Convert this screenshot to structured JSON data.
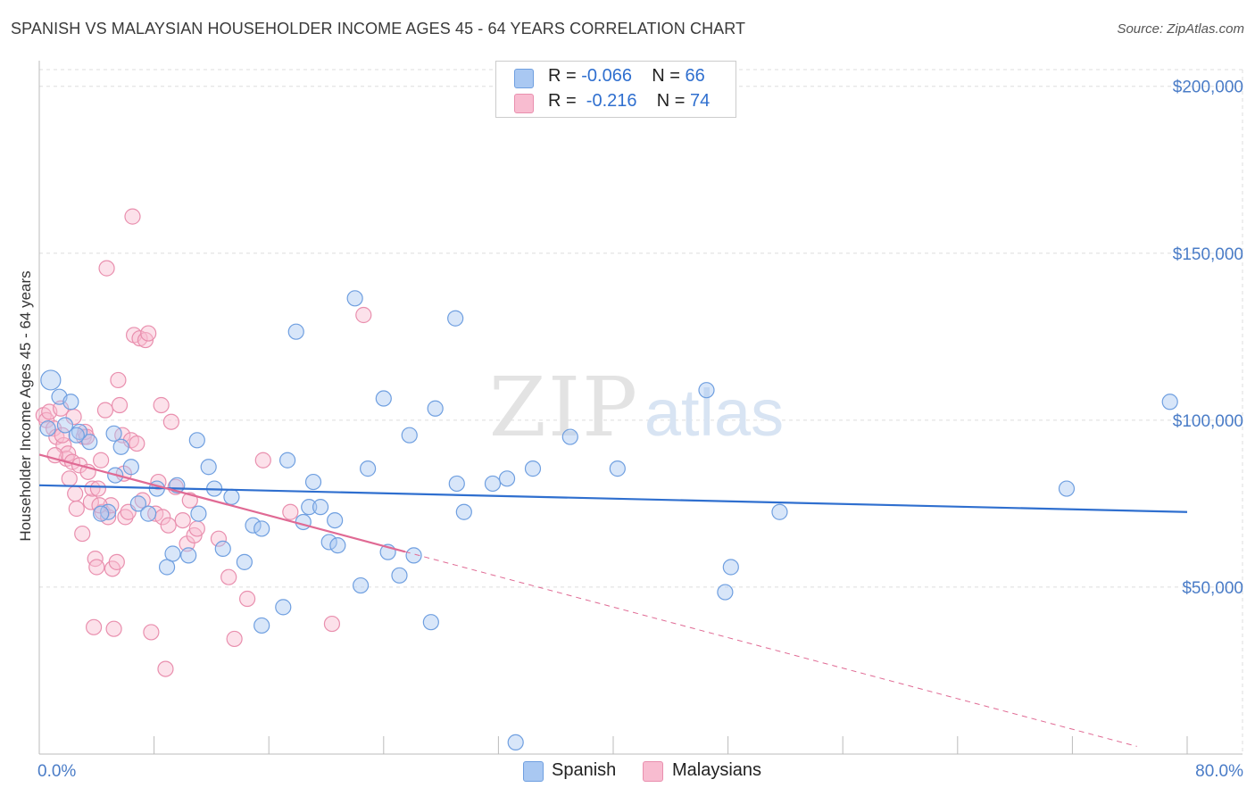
{
  "title": "SPANISH VS MALAYSIAN HOUSEHOLDER INCOME AGES 45 - 64 YEARS CORRELATION CHART",
  "source": "Source: ZipAtlas.com",
  "watermark": {
    "zip": "ZIP",
    "atlas": "atlas"
  },
  "legend": {
    "rows": [
      {
        "r_label": "R = ",
        "r_value": "-0.066",
        "n_label": "N = ",
        "n_value": "66",
        "color": "#a9c8f2",
        "border": "#6f9fe0"
      },
      {
        "r_label": "R = ",
        "r_value": " -0.216",
        "n_label": "N = ",
        "n_value": "74",
        "color": "#f8bcd0",
        "border": "#e98fae"
      }
    ]
  },
  "bottom_legend": [
    {
      "label": "Spanish",
      "color": "#a9c8f2",
      "border": "#6f9fe0"
    },
    {
      "label": "Malaysians",
      "color": "#f8bcd0",
      "border": "#e98fae"
    }
  ],
  "chart_data": {
    "type": "scatter",
    "ylabel": "Householder Income Ages 45 - 64 years",
    "x_tick_labels": [
      "0.0%",
      "80.0%"
    ],
    "y_tick_labels": [
      "$50,000",
      "$100,000",
      "$150,000",
      "$200,000"
    ],
    "y_ticks": [
      50000,
      100000,
      150000,
      200000
    ],
    "xlim": [
      0,
      80
    ],
    "ylim": [
      0,
      205000
    ],
    "grid": true,
    "series": [
      {
        "name": "Spanish",
        "color": "#a9c8f2",
        "stroke": "#6f9fe0",
        "trend_color": "#2f6fcf",
        "trend": {
          "x": [
            0,
            80
          ],
          "y": [
            80500,
            72500
          ]
        },
        "points": [
          [
            0.8,
            112000
          ],
          [
            1.4,
            107000
          ],
          [
            2.2,
            105500
          ],
          [
            1.8,
            98500
          ],
          [
            3.5,
            93500
          ],
          [
            2.8,
            96500
          ],
          [
            5.7,
            92000
          ],
          [
            5.2,
            96000
          ],
          [
            6.4,
            86000
          ],
          [
            5.3,
            83500
          ],
          [
            4.8,
            72500
          ],
          [
            4.3,
            72000
          ],
          [
            6.9,
            75000
          ],
          [
            7.6,
            72000
          ],
          [
            8.2,
            79500
          ],
          [
            9.6,
            80500
          ],
          [
            8.9,
            56000
          ],
          [
            9.3,
            60000
          ],
          [
            10.4,
            59500
          ],
          [
            11.0,
            94000
          ],
          [
            11.1,
            72000
          ],
          [
            11.8,
            86000
          ],
          [
            12.2,
            79500
          ],
          [
            12.8,
            61500
          ],
          [
            13.4,
            77000
          ],
          [
            14.3,
            57500
          ],
          [
            14.9,
            68500
          ],
          [
            15.5,
            67500
          ],
          [
            15.5,
            38500
          ],
          [
            17.0,
            44000
          ],
          [
            17.3,
            88000
          ],
          [
            17.9,
            126500
          ],
          [
            18.4,
            69500
          ],
          [
            18.8,
            74000
          ],
          [
            19.1,
            81500
          ],
          [
            19.6,
            74000
          ],
          [
            20.2,
            63500
          ],
          [
            20.6,
            70000
          ],
          [
            20.8,
            62500
          ],
          [
            22.0,
            136500
          ],
          [
            22.4,
            50500
          ],
          [
            22.9,
            85500
          ],
          [
            24.0,
            106500
          ],
          [
            24.3,
            60500
          ],
          [
            25.1,
            53500
          ],
          [
            25.8,
            95500
          ],
          [
            26.1,
            59500
          ],
          [
            27.3,
            39500
          ],
          [
            27.6,
            103500
          ],
          [
            29.0,
            130500
          ],
          [
            29.1,
            81000
          ],
          [
            29.6,
            72500
          ],
          [
            31.6,
            81000
          ],
          [
            32.6,
            82500
          ],
          [
            33.2,
            3500
          ],
          [
            34.4,
            85500
          ],
          [
            37.0,
            95000
          ],
          [
            40.3,
            85500
          ],
          [
            46.5,
            109000
          ],
          [
            47.8,
            48500
          ],
          [
            48.2,
            56000
          ],
          [
            51.6,
            72500
          ],
          [
            71.6,
            79500
          ],
          [
            78.8,
            105500
          ],
          [
            0.6,
            97500
          ],
          [
            2.6,
            95500
          ]
        ]
      },
      {
        "name": "Malaysians",
        "color": "#f8bcd0",
        "stroke": "#e98fae",
        "trend_color": "#e06a94",
        "trend": {
          "x": [
            0,
            25.5
          ],
          "y": [
            89700,
            60600
          ]
        },
        "trend_dashed": {
          "x": [
            25.5,
            76.5
          ],
          "y": [
            60600,
            2300
          ]
        },
        "points": [
          [
            0.3,
            101500
          ],
          [
            0.5,
            100000
          ],
          [
            0.7,
            102500
          ],
          [
            1.0,
            97500
          ],
          [
            1.2,
            95000
          ],
          [
            1.5,
            103500
          ],
          [
            1.7,
            92500
          ],
          [
            1.9,
            88500
          ],
          [
            2.0,
            90000
          ],
          [
            2.1,
            82500
          ],
          [
            2.3,
            87500
          ],
          [
            2.5,
            78000
          ],
          [
            2.6,
            73500
          ],
          [
            2.8,
            86500
          ],
          [
            3.0,
            66000
          ],
          [
            3.1,
            95000
          ],
          [
            3.2,
            96500
          ],
          [
            3.4,
            84500
          ],
          [
            3.6,
            75500
          ],
          [
            3.7,
            79500
          ],
          [
            3.9,
            58500
          ],
          [
            4.0,
            56000
          ],
          [
            4.1,
            79500
          ],
          [
            4.3,
            88000
          ],
          [
            4.4,
            72500
          ],
          [
            4.6,
            103000
          ],
          [
            4.7,
            145500
          ],
          [
            4.8,
            71000
          ],
          [
            5.0,
            74500
          ],
          [
            5.1,
            55500
          ],
          [
            5.2,
            37500
          ],
          [
            5.4,
            57500
          ],
          [
            5.5,
            112000
          ],
          [
            5.6,
            104500
          ],
          [
            5.8,
            95500
          ],
          [
            6.0,
            71000
          ],
          [
            6.2,
            72500
          ],
          [
            6.4,
            94000
          ],
          [
            6.5,
            161000
          ],
          [
            6.6,
            125500
          ],
          [
            6.8,
            93000
          ],
          [
            7.0,
            124500
          ],
          [
            7.2,
            76000
          ],
          [
            7.4,
            124000
          ],
          [
            7.6,
            126000
          ],
          [
            7.8,
            36500
          ],
          [
            8.1,
            72000
          ],
          [
            8.3,
            81500
          ],
          [
            8.5,
            104500
          ],
          [
            8.6,
            71000
          ],
          [
            8.8,
            25500
          ],
          [
            9.0,
            68500
          ],
          [
            9.2,
            99500
          ],
          [
            9.5,
            80000
          ],
          [
            10.0,
            70000
          ],
          [
            10.3,
            63000
          ],
          [
            10.5,
            76000
          ],
          [
            10.8,
            65500
          ],
          [
            11.0,
            67500
          ],
          [
            12.5,
            64500
          ],
          [
            13.2,
            53000
          ],
          [
            13.6,
            34500
          ],
          [
            14.5,
            46500
          ],
          [
            15.6,
            88000
          ],
          [
            17.5,
            72500
          ],
          [
            20.4,
            39000
          ],
          [
            22.6,
            131500
          ],
          [
            1.1,
            89500
          ],
          [
            1.6,
            95500
          ],
          [
            2.4,
            101000
          ],
          [
            3.3,
            95000
          ],
          [
            4.2,
            74500
          ],
          [
            5.9,
            84000
          ],
          [
            3.8,
            38000
          ]
        ]
      }
    ]
  }
}
